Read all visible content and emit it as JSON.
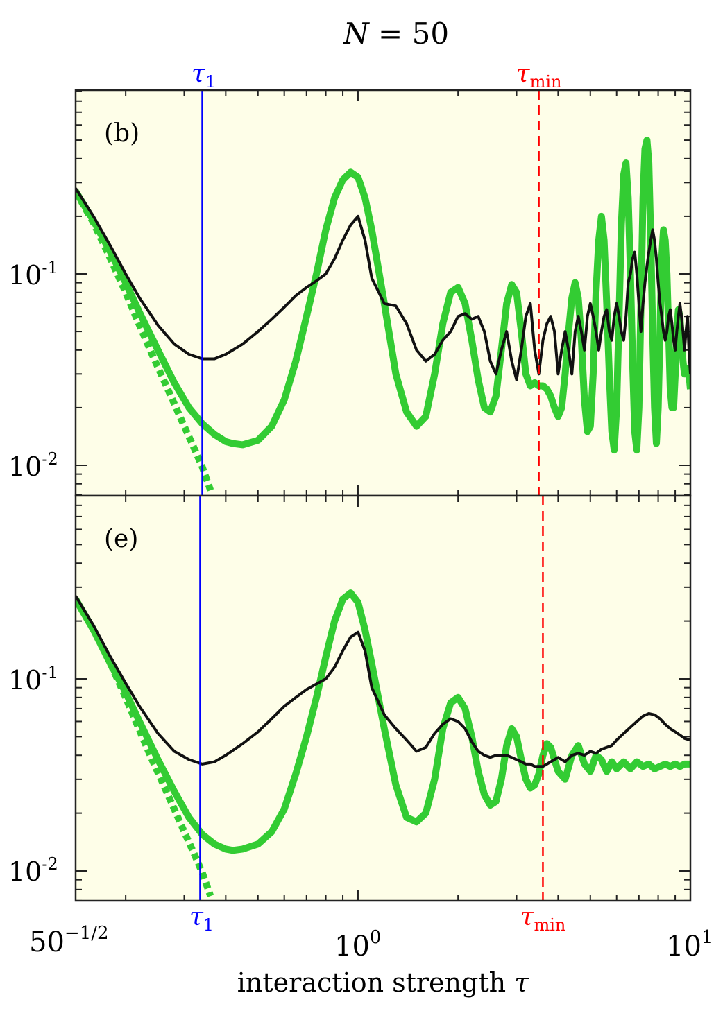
{
  "figure": {
    "title_var": "N",
    "title_rest": " = 50",
    "xlabel_text": "interaction strength ",
    "xlabel_var": "τ",
    "x_tick_left_base": "50",
    "x_tick_left_exp": "−1/2",
    "x_tick_mid_base": "10",
    "x_tick_mid_exp": "0",
    "x_tick_right_base": "10",
    "x_tick_right_exp": "1",
    "y_tick_base": "10",
    "y_tick_exp_hi": "-1",
    "y_tick_exp_lo": "-2",
    "tau1_sym": "τ",
    "tau1_sub": "1",
    "taumin_sym": "τ",
    "taumin_sub": "min",
    "colors": {
      "background": "#fefee8",
      "green": "#33cc33",
      "black": "#111111",
      "tau1_line": "#0000ff",
      "taumin_line": "#ff0000"
    }
  },
  "chart_data": [
    {
      "type": "line",
      "panel_label": "(b)",
      "x_scale": "log",
      "y_scale": "log",
      "xlim": [
        0.1414,
        10
      ],
      "ylim": [
        0.0072,
        0.85
      ],
      "tau1": 0.34,
      "tau_min": 3.5,
      "series": [
        {
          "style": "green-solid-thick",
          "x": [
            0.1414,
            0.16,
            0.18,
            0.2,
            0.22,
            0.25,
            0.28,
            0.31,
            0.34,
            0.37,
            0.4,
            0.42,
            0.45,
            0.5,
            0.55,
            0.6,
            0.65,
            0.7,
            0.75,
            0.8,
            0.85,
            0.9,
            0.95,
            1.0,
            1.05,
            1.1,
            1.2,
            1.3,
            1.4,
            1.5,
            1.6,
            1.7,
            1.8,
            1.9,
            2.0,
            2.1,
            2.2,
            2.3,
            2.4,
            2.5,
            2.6,
            2.7,
            2.8,
            2.9,
            3.0,
            3.1,
            3.2,
            3.3,
            3.4,
            3.5,
            3.6,
            3.7,
            3.8,
            3.9,
            4.0,
            4.1,
            4.2,
            4.3,
            4.4,
            4.5,
            4.6,
            4.7,
            4.8,
            4.9,
            5.0,
            5.1,
            5.2,
            5.3,
            5.4,
            5.5,
            5.6,
            5.7,
            5.8,
            5.9,
            6.0,
            6.1,
            6.2,
            6.3,
            6.4,
            6.5,
            6.6,
            6.7,
            6.8,
            6.9,
            7.0,
            7.1,
            7.2,
            7.3,
            7.4,
            7.5,
            7.6,
            7.7,
            7.8,
            7.9,
            8.0,
            8.1,
            8.2,
            8.3,
            8.4,
            8.5,
            8.6,
            8.7,
            8.8,
            8.9,
            9.0,
            9.1,
            9.2,
            9.3,
            9.4,
            9.5,
            9.6,
            9.7,
            9.8,
            9.9,
            10.0
          ],
          "y": [
            0.27,
            0.19,
            0.13,
            0.09,
            0.063,
            0.04,
            0.027,
            0.02,
            0.0165,
            0.0145,
            0.0133,
            0.013,
            0.0128,
            0.0135,
            0.016,
            0.022,
            0.035,
            0.06,
            0.1,
            0.17,
            0.25,
            0.31,
            0.34,
            0.32,
            0.25,
            0.17,
            0.07,
            0.03,
            0.019,
            0.016,
            0.018,
            0.03,
            0.055,
            0.08,
            0.085,
            0.07,
            0.045,
            0.028,
            0.02,
            0.019,
            0.023,
            0.04,
            0.07,
            0.088,
            0.08,
            0.05,
            0.03,
            0.026,
            0.027,
            0.026,
            0.026,
            0.025,
            0.023,
            0.02,
            0.018,
            0.02,
            0.03,
            0.05,
            0.075,
            0.09,
            0.075,
            0.045,
            0.022,
            0.015,
            0.016,
            0.03,
            0.08,
            0.15,
            0.2,
            0.15,
            0.07,
            0.03,
            0.015,
            0.012,
            0.02,
            0.06,
            0.18,
            0.33,
            0.38,
            0.25,
            0.1,
            0.035,
            0.015,
            0.012,
            0.02,
            0.07,
            0.25,
            0.45,
            0.5,
            0.38,
            0.15,
            0.05,
            0.02,
            0.013,
            0.02,
            0.05,
            0.12,
            0.17,
            0.15,
            0.1,
            0.05,
            0.025,
            0.02,
            0.02,
            0.03,
            0.05,
            0.065,
            0.06,
            0.045,
            0.035,
            0.03,
            0.03,
            0.032,
            0.03,
            0.025
          ]
        },
        {
          "style": "green-dotted-thick",
          "x": [
            0.1414,
            0.16,
            0.18,
            0.2,
            0.22,
            0.24,
            0.26,
            0.28,
            0.3,
            0.32,
            0.34,
            0.36
          ],
          "y": [
            0.27,
            0.185,
            0.12,
            0.08,
            0.054,
            0.038,
            0.028,
            0.021,
            0.016,
            0.0125,
            0.0098,
            0.0074
          ]
        },
        {
          "style": "black-solid",
          "x": [
            0.1414,
            0.16,
            0.18,
            0.2,
            0.22,
            0.25,
            0.28,
            0.31,
            0.34,
            0.37,
            0.4,
            0.45,
            0.5,
            0.55,
            0.6,
            0.65,
            0.7,
            0.75,
            0.8,
            0.85,
            0.9,
            0.95,
            1.0,
            1.05,
            1.1,
            1.2,
            1.3,
            1.4,
            1.5,
            1.6,
            1.7,
            1.8,
            1.9,
            2.0,
            2.1,
            2.2,
            2.3,
            2.4,
            2.5,
            2.6,
            2.7,
            2.8,
            2.9,
            3.0,
            3.1,
            3.2,
            3.3,
            3.4,
            3.5,
            3.6,
            3.7,
            3.8,
            3.9,
            4.0,
            4.1,
            4.2,
            4.3,
            4.4,
            4.5,
            4.6,
            4.7,
            4.8,
            4.9,
            5.0,
            5.1,
            5.2,
            5.3,
            5.4,
            5.5,
            5.6,
            5.7,
            5.8,
            5.9,
            6.0,
            6.1,
            6.2,
            6.3,
            6.4,
            6.5,
            6.6,
            6.7,
            6.8,
            6.9,
            7.0,
            7.1,
            7.2,
            7.3,
            7.4,
            7.5,
            7.6,
            7.7,
            7.8,
            7.9,
            8.0,
            8.1,
            8.2,
            8.3,
            8.4,
            8.5,
            8.6,
            8.7,
            8.8,
            8.9,
            9.0,
            9.1,
            9.2,
            9.3,
            9.4,
            9.5,
            9.6,
            9.7,
            9.8,
            9.9,
            10.0
          ],
          "y": [
            0.28,
            0.2,
            0.14,
            0.1,
            0.075,
            0.054,
            0.043,
            0.038,
            0.036,
            0.036,
            0.038,
            0.043,
            0.05,
            0.058,
            0.067,
            0.077,
            0.085,
            0.092,
            0.1,
            0.12,
            0.15,
            0.18,
            0.2,
            0.15,
            0.095,
            0.07,
            0.068,
            0.055,
            0.04,
            0.035,
            0.038,
            0.045,
            0.05,
            0.06,
            0.062,
            0.058,
            0.06,
            0.05,
            0.035,
            0.03,
            0.04,
            0.05,
            0.035,
            0.028,
            0.04,
            0.06,
            0.07,
            0.04,
            0.03,
            0.045,
            0.055,
            0.06,
            0.05,
            0.03,
            0.04,
            0.05,
            0.04,
            0.03,
            0.05,
            0.06,
            0.05,
            0.04,
            0.06,
            0.07,
            0.06,
            0.05,
            0.04,
            0.05,
            0.06,
            0.065,
            0.05,
            0.045,
            0.06,
            0.07,
            0.06,
            0.05,
            0.045,
            0.06,
            0.09,
            0.1,
            0.12,
            0.13,
            0.1,
            0.07,
            0.05,
            0.07,
            0.09,
            0.11,
            0.13,
            0.15,
            0.17,
            0.15,
            0.12,
            0.09,
            0.07,
            0.06,
            0.05,
            0.045,
            0.05,
            0.06,
            0.065,
            0.055,
            0.045,
            0.04,
            0.05,
            0.06,
            0.07,
            0.06,
            0.05,
            0.04,
            0.05,
            0.06,
            0.04,
            0.03
          ]
        }
      ]
    },
    {
      "type": "line",
      "panel_label": "(e)",
      "x_scale": "log",
      "y_scale": "log",
      "xlim": [
        0.1414,
        10
      ],
      "ylim": [
        0.0072,
        0.85
      ],
      "tau1": 0.335,
      "tau_min": 3.6,
      "series": [
        {
          "style": "green-solid-thick",
          "x": [
            0.1414,
            0.16,
            0.18,
            0.2,
            0.22,
            0.25,
            0.28,
            0.31,
            0.34,
            0.37,
            0.4,
            0.42,
            0.45,
            0.5,
            0.55,
            0.6,
            0.65,
            0.7,
            0.75,
            0.8,
            0.85,
            0.9,
            0.95,
            1.0,
            1.05,
            1.1,
            1.2,
            1.3,
            1.4,
            1.5,
            1.6,
            1.7,
            1.8,
            1.9,
            2.0,
            2.1,
            2.2,
            2.3,
            2.4,
            2.5,
            2.6,
            2.7,
            2.8,
            2.9,
            3.0,
            3.1,
            3.2,
            3.3,
            3.4,
            3.5,
            3.6,
            3.7,
            3.8,
            3.9,
            4.0,
            4.2,
            4.4,
            4.6,
            4.8,
            5.0,
            5.2,
            5.4,
            5.6,
            5.8,
            6.0,
            6.3,
            6.6,
            6.9,
            7.2,
            7.5,
            7.8,
            8.1,
            8.4,
            8.7,
            9.0,
            9.3,
            9.6,
            10.0
          ],
          "y": [
            0.26,
            0.18,
            0.12,
            0.085,
            0.06,
            0.038,
            0.026,
            0.019,
            0.0155,
            0.0138,
            0.013,
            0.0128,
            0.013,
            0.0138,
            0.016,
            0.021,
            0.032,
            0.05,
            0.08,
            0.13,
            0.2,
            0.26,
            0.28,
            0.25,
            0.18,
            0.12,
            0.055,
            0.028,
            0.019,
            0.018,
            0.02,
            0.03,
            0.055,
            0.075,
            0.08,
            0.07,
            0.05,
            0.033,
            0.025,
            0.022,
            0.023,
            0.03,
            0.045,
            0.055,
            0.05,
            0.038,
            0.03,
            0.027,
            0.028,
            0.032,
            0.04,
            0.046,
            0.044,
            0.038,
            0.033,
            0.03,
            0.04,
            0.045,
            0.036,
            0.033,
            0.04,
            0.038,
            0.033,
            0.037,
            0.034,
            0.037,
            0.034,
            0.037,
            0.035,
            0.036,
            0.034,
            0.035,
            0.036,
            0.035,
            0.036,
            0.035,
            0.036,
            0.036
          ]
        },
        {
          "style": "green-dotted-thick",
          "x": [
            0.1414,
            0.16,
            0.18,
            0.2,
            0.22,
            0.24,
            0.26,
            0.28,
            0.3,
            0.32,
            0.34,
            0.36
          ],
          "y": [
            0.26,
            0.18,
            0.12,
            0.08,
            0.054,
            0.038,
            0.028,
            0.021,
            0.016,
            0.0125,
            0.0098,
            0.0074
          ]
        },
        {
          "style": "black-solid",
          "x": [
            0.1414,
            0.16,
            0.18,
            0.2,
            0.22,
            0.25,
            0.28,
            0.31,
            0.34,
            0.37,
            0.4,
            0.45,
            0.5,
            0.55,
            0.6,
            0.65,
            0.7,
            0.75,
            0.8,
            0.85,
            0.9,
            0.95,
            1.0,
            1.05,
            1.1,
            1.2,
            1.3,
            1.4,
            1.5,
            1.6,
            1.7,
            1.8,
            1.9,
            2.0,
            2.1,
            2.2,
            2.3,
            2.4,
            2.5,
            2.6,
            2.7,
            2.8,
            2.9,
            3.0,
            3.1,
            3.2,
            3.3,
            3.4,
            3.5,
            3.6,
            3.7,
            3.8,
            3.9,
            4.0,
            4.2,
            4.4,
            4.6,
            4.8,
            5.0,
            5.2,
            5.4,
            5.6,
            5.8,
            6.0,
            6.3,
            6.6,
            6.9,
            7.2,
            7.5,
            7.8,
            8.1,
            8.4,
            8.7,
            9.0,
            9.3,
            9.6,
            10.0
          ],
          "y": [
            0.27,
            0.19,
            0.13,
            0.095,
            0.072,
            0.052,
            0.042,
            0.038,
            0.036,
            0.037,
            0.04,
            0.046,
            0.053,
            0.062,
            0.072,
            0.08,
            0.088,
            0.094,
            0.1,
            0.115,
            0.14,
            0.165,
            0.175,
            0.14,
            0.09,
            0.065,
            0.055,
            0.048,
            0.042,
            0.044,
            0.052,
            0.058,
            0.062,
            0.06,
            0.055,
            0.047,
            0.042,
            0.04,
            0.039,
            0.04,
            0.04,
            0.04,
            0.039,
            0.038,
            0.037,
            0.036,
            0.036,
            0.035,
            0.035,
            0.035,
            0.036,
            0.037,
            0.038,
            0.039,
            0.037,
            0.04,
            0.041,
            0.04,
            0.042,
            0.041,
            0.043,
            0.044,
            0.045,
            0.048,
            0.052,
            0.056,
            0.06,
            0.064,
            0.066,
            0.065,
            0.062,
            0.058,
            0.055,
            0.053,
            0.051,
            0.049,
            0.048
          ]
        }
      ]
    }
  ]
}
